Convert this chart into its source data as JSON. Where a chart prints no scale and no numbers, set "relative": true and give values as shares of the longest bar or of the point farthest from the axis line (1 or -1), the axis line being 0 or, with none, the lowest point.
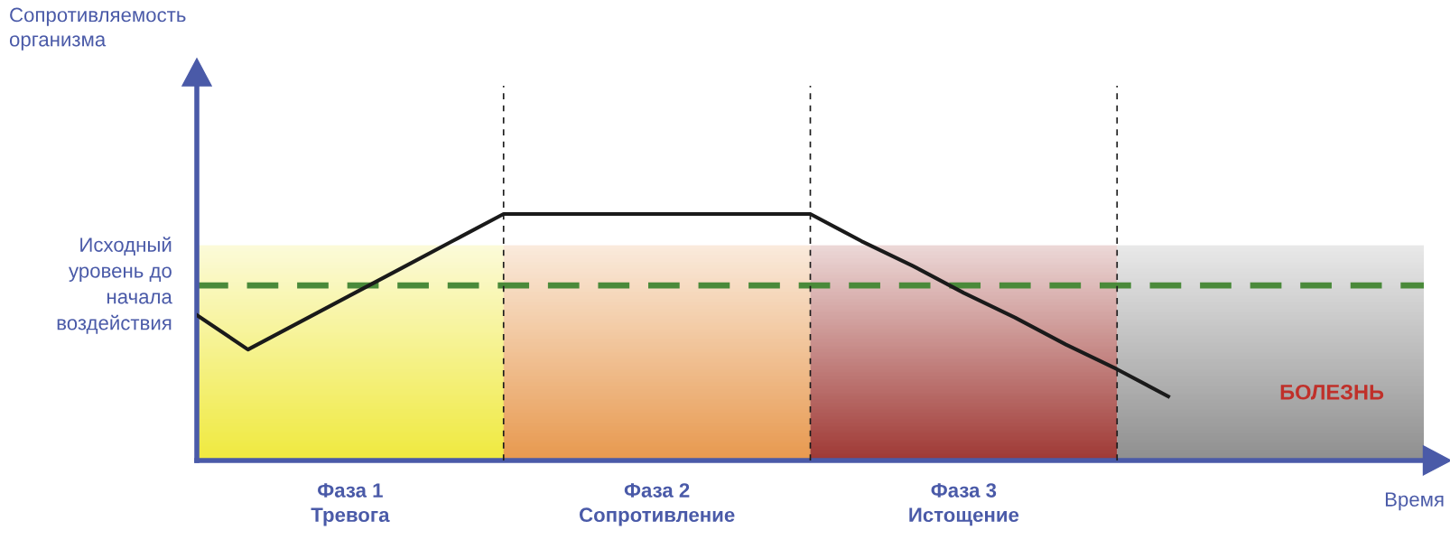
{
  "chart_data": {
    "type": "line",
    "relative": true,
    "xlabel": "Время",
    "annotations": [
      "Сопротивляемость\nорганизма",
      "Фаза 1\nТревога",
      "Фаза 2\nСопротивление",
      "Фаза 3\nИстощение",
      "БОЛЕЗНЬ"
    ],
    "categories": [
      null,
      null,
      null,
      null,
      null,
      null,
      null,
      null,
      null,
      null,
      null,
      null,
      null,
      null,
      null,
      null,
      null,
      null,
      null,
      null,
      null,
      null,
      null,
      null
    ],
    "series": [
      {
        "color": "#1a1a1a",
        "values": [
          0.59,
          0.45,
          0.56,
          0.67,
          0.78,
          0.89,
          1,
          1,
          1,
          1,
          1,
          1,
          1,
          0.89,
          0.79,
          0.68,
          0.58,
          0.47,
          0.37,
          0.26,
          null,
          null,
          null,
          null
        ]
      }
    ],
    "ref_lines": [
      {
        "axis": "y",
        "value": 0.71,
        "label": "Исходный\nуровень до\nначала\nвоздействия",
        "color": "#4a8a3a",
        "line_style": "dashed"
      }
    ],
    "grid": "x",
    "line_style": "solid",
    "marker": "none",
    "legend": false
  }
}
